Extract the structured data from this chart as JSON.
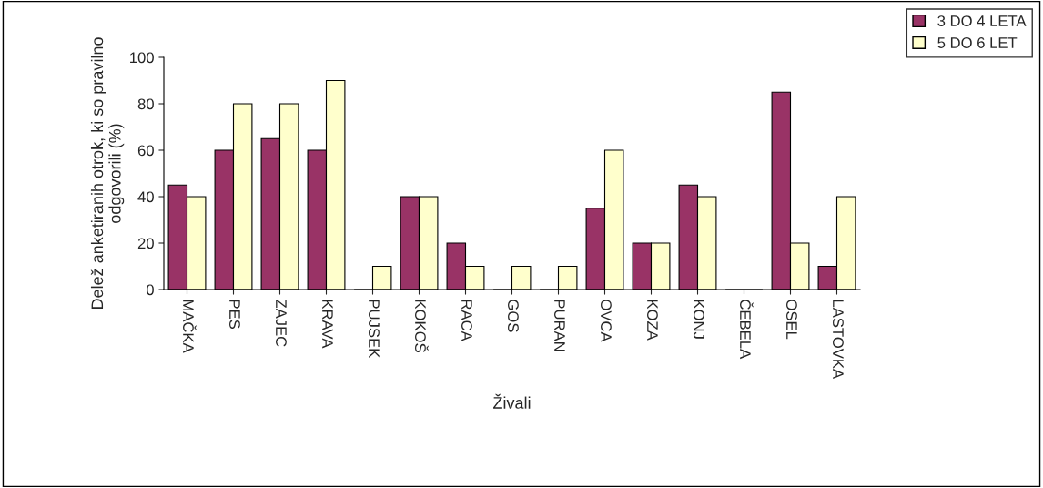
{
  "chart_data": {
    "type": "bar",
    "xlabel": "Živali",
    "ylabel": "Delež anketiranih otrok, ki so pravilno odgovorili (%)",
    "categories": [
      "MAČKA",
      "PES",
      "ZAJEC",
      "KRAVA",
      "PUJSEK",
      "KOKOŠ",
      "RACA",
      "GOS",
      "PURAN",
      "OVCA",
      "KOZA",
      "KONJ",
      "ČEBELA",
      "OSEL",
      "LASTOVKA"
    ],
    "series": [
      {
        "name": "3 DO 4 LETA",
        "color": "#993366",
        "values": [
          45,
          60,
          65,
          60,
          0,
          40,
          20,
          0,
          0,
          35,
          20,
          45,
          0,
          85,
          10
        ]
      },
      {
        "name": "5 DO 6 LET",
        "color": "#ffffcc",
        "values": [
          40,
          80,
          80,
          90,
          10,
          40,
          10,
          10,
          10,
          60,
          20,
          40,
          0,
          20,
          40
        ]
      }
    ],
    "ylim": [
      0,
      100
    ],
    "yticks": [
      0,
      20,
      40,
      60,
      80,
      100
    ],
    "grid": false,
    "legend": "top right"
  }
}
